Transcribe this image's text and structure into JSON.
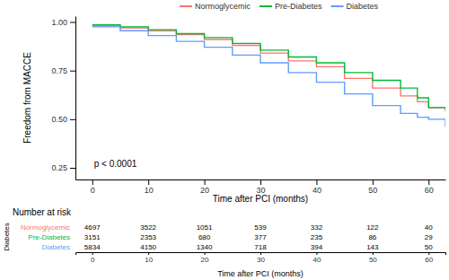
{
  "chart_data": {
    "type": "line",
    "line_style": "step",
    "legend": "top",
    "xlabel": "Time after PCI (months)",
    "ylabel": "Freedom from MACCE",
    "annotation": "p < 0.0001",
    "x": [
      0,
      5,
      10,
      15,
      20,
      25,
      30,
      35,
      40,
      45,
      50,
      55,
      58,
      60,
      63
    ],
    "xlim": [
      -3,
      63
    ],
    "xticks": [
      0,
      10,
      20,
      30,
      40,
      50,
      60
    ],
    "ylim": [
      0.19,
      1.03
    ],
    "yticks": [
      0.25,
      {
        "value": 0.5,
        "label": "0.50"
      },
      0.75,
      {
        "value": 1,
        "label": "1.00"
      }
    ],
    "series": [
      {
        "name": "Normoglycemic",
        "color": "#F8766D",
        "values": [
          0.98,
          0.97,
          0.955,
          0.935,
          0.91,
          0.88,
          0.84,
          0.8,
          0.77,
          0.71,
          0.66,
          0.62,
          0.59,
          0.56,
          0.54
        ]
      },
      {
        "name": "Pre-Diabetes",
        "color": "#00BA38",
        "values": [
          0.985,
          0.975,
          0.96,
          0.94,
          0.92,
          0.89,
          0.855,
          0.82,
          0.79,
          0.74,
          0.7,
          0.66,
          0.61,
          0.56,
          0.55
        ]
      },
      {
        "name": "Diabetes",
        "color": "#619CFF",
        "values": [
          0.975,
          0.955,
          0.93,
          0.9,
          0.87,
          0.83,
          0.79,
          0.74,
          0.69,
          0.63,
          0.57,
          0.53,
          0.51,
          0.5,
          0.46
        ]
      }
    ],
    "risk_table": {
      "title": "Number at risk",
      "ylabel": "Diabetes",
      "xlabel": "Time after PCI (months)",
      "x": [
        0,
        10,
        20,
        30,
        40,
        50,
        60
      ],
      "rows": [
        {
          "name": "Normoglycemic",
          "values": [
            4697,
            3522,
            1051,
            539,
            332,
            122,
            40
          ]
        },
        {
          "name": "Pre-Diabetes",
          "values": [
            3151,
            2353,
            680,
            377,
            235,
            86,
            29
          ]
        },
        {
          "name": "Diabetes",
          "values": [
            5834,
            4150,
            1340,
            718,
            394,
            143,
            50
          ]
        }
      ]
    }
  }
}
